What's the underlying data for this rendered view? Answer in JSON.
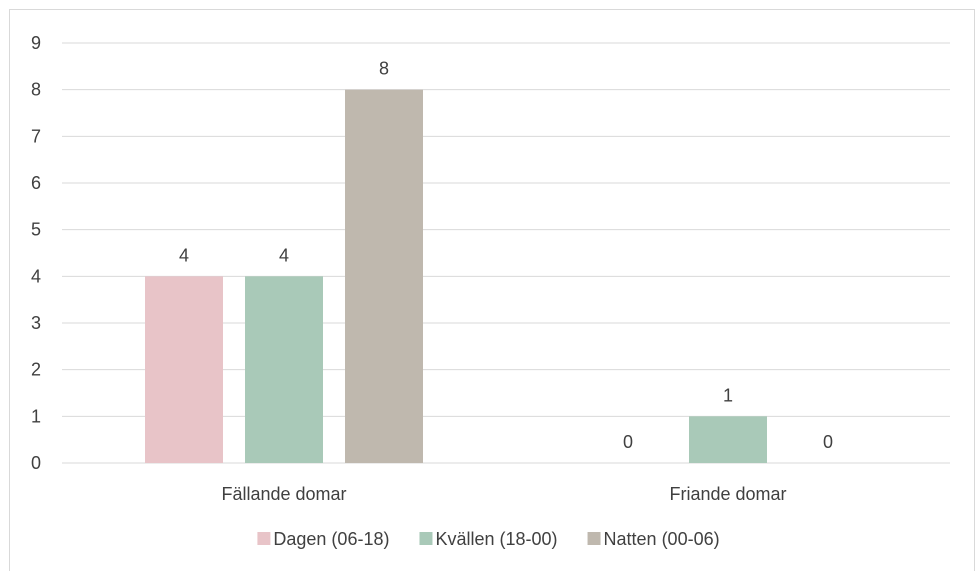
{
  "chart_data": {
    "type": "bar",
    "categories": [
      "Fällande domar",
      "Friande domar"
    ],
    "series": [
      {
        "name": "Dagen (06-18)",
        "values": [
          4,
          0
        ],
        "color": "#e8c4c8"
      },
      {
        "name": "Kvällen (18-00)",
        "values": [
          4,
          1
        ],
        "color": "#a9c9b8"
      },
      {
        "name": "Natten (00-06)",
        "values": [
          8,
          0
        ],
        "color": "#bfb8ae"
      }
    ],
    "title": "",
    "xlabel": "",
    "ylabel": "",
    "ylim": [
      0,
      9
    ],
    "yticks": [
      0,
      1,
      2,
      3,
      4,
      5,
      6,
      7,
      8,
      9
    ],
    "grid": true,
    "legend": "bottom",
    "data_labels": true,
    "colors": {
      "grid": "#d9d9d9",
      "text": "#404040"
    }
  }
}
